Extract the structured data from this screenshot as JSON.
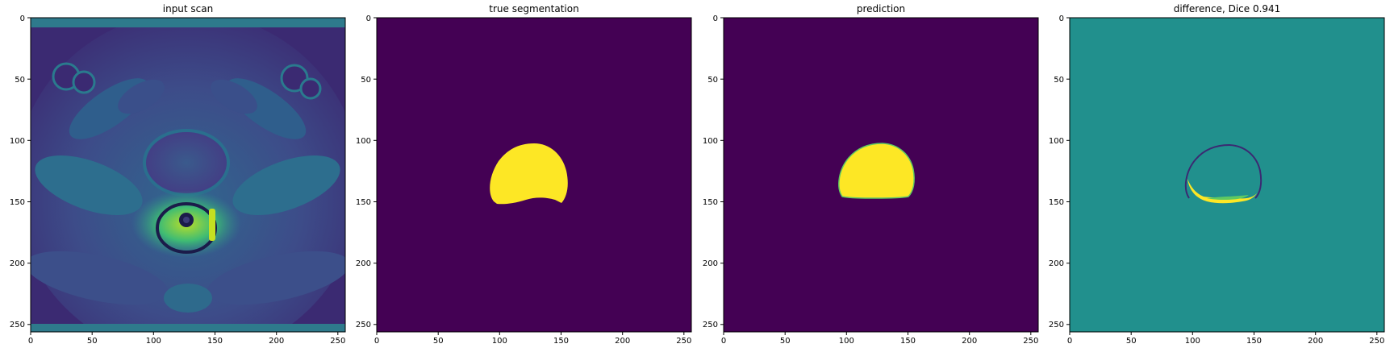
{
  "figure": {
    "panels": [
      {
        "title": "input scan",
        "kind": "mri",
        "x_ticks": [
          "0",
          "50",
          "100",
          "150",
          "200",
          "250"
        ],
        "y_ticks": [
          "0",
          "50",
          "100",
          "150",
          "200",
          "250"
        ]
      },
      {
        "title": "true segmentation",
        "kind": "mask",
        "x_ticks": [
          "0",
          "50",
          "100",
          "150",
          "200",
          "250"
        ],
        "y_ticks": [
          "0",
          "50",
          "100",
          "150",
          "200",
          "250"
        ]
      },
      {
        "title": "prediction",
        "kind": "mask",
        "x_ticks": [
          "0",
          "50",
          "100",
          "150",
          "200",
          "250"
        ],
        "y_ticks": [
          "0",
          "50",
          "100",
          "150",
          "200",
          "250"
        ]
      },
      {
        "title": "difference, Dice 0.941",
        "kind": "difference",
        "x_ticks": [
          "0",
          "50",
          "100",
          "150",
          "200",
          "250"
        ],
        "y_ticks": [
          "0",
          "50",
          "100",
          "150",
          "200",
          "250"
        ]
      }
    ],
    "image_size": [
      256,
      256
    ],
    "colormap": {
      "name": "viridis",
      "low": "#440154",
      "mid": "#21908d",
      "high": "#fde725",
      "mri_dark": "#3b2a72",
      "mri_mid": "#2e6f8e",
      "mri_bright": "#4fc06a"
    }
  }
}
